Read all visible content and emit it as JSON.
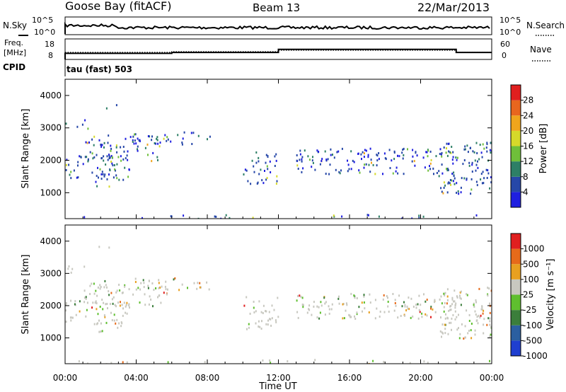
{
  "header": {
    "station": "Goose Bay (fitACF)",
    "beam": "Beam 13",
    "date": "22/Mar/2013"
  },
  "noise_panel": {
    "left_label": "N.Sky",
    "left_ticks": [
      "10^5",
      "10^0"
    ],
    "right_label": "N.Search",
    "right_ticks": [
      "10^5",
      "10^0"
    ]
  },
  "freq_panel": {
    "label_line1": "Freq.",
    "label_line2": "[MHz]",
    "left_ticks": [
      "18",
      "8"
    ],
    "right_label": "Nave",
    "right_ticks": [
      "60",
      "0"
    ],
    "cpid_label": "CPID",
    "cpid_value": "tau (fast) 503"
  },
  "colors": {
    "power_scale": [
      "#1f1fe0",
      "#2647a8",
      "#2d7f66",
      "#6fbf3a",
      "#d6d92a",
      "#f0a51c",
      "#e8661e",
      "#e01f1f"
    ],
    "velocity_scale": [
      "#1f3fd0",
      "#2b5fa0",
      "#3b7e3b",
      "#5fbf2f",
      "#c8c8c0",
      "#e8a020",
      "#e66a1a",
      "#e01f1f"
    ]
  },
  "chart_data": [
    {
      "type": "heatmap",
      "name": "Power",
      "ylabel": "Slant Range [km]",
      "xlabel": "Time UT",
      "ylim": [
        200,
        4500
      ],
      "xlim": [
        0,
        24
      ],
      "x_ticks": [
        "00:00",
        "04:00",
        "08:00",
        "12:00",
        "16:00",
        "20:00",
        "00:00"
      ],
      "y_ticks": [
        1000,
        2000,
        3000,
        4000
      ],
      "colorbar": {
        "label": "Power [dB]",
        "ticks": [
          4,
          8,
          12,
          16,
          20,
          24,
          28
        ]
      }
    },
    {
      "type": "heatmap",
      "name": "Velocity",
      "ylabel": "Slant Range [km]",
      "xlabel": "Time UT",
      "ylim": [
        200,
        4500
      ],
      "xlim": [
        0,
        24
      ],
      "x_ticks": [
        "00:00",
        "04:00",
        "08:00",
        "12:00",
        "16:00",
        "20:00",
        "00:00"
      ],
      "y_ticks": [
        1000,
        2000,
        3000,
        4000
      ],
      "colorbar": {
        "label": "Velocity [m s⁻¹]",
        "ticks": [
          1000,
          500,
          100,
          25,
          -25,
          -100,
          -500,
          -1000
        ]
      }
    },
    {
      "type": "line",
      "name": "Frequency",
      "x": [
        0,
        6,
        6,
        12,
        12,
        22,
        22,
        24
      ],
      "y": [
        11,
        11,
        11.6,
        11.6,
        13.6,
        13.6,
        11.6,
        11.6
      ]
    }
  ],
  "x_axis": {
    "label": "Time UT",
    "ticks": [
      "00:00",
      "04:00",
      "08:00",
      "12:00",
      "16:00",
      "20:00",
      "00:00"
    ]
  }
}
